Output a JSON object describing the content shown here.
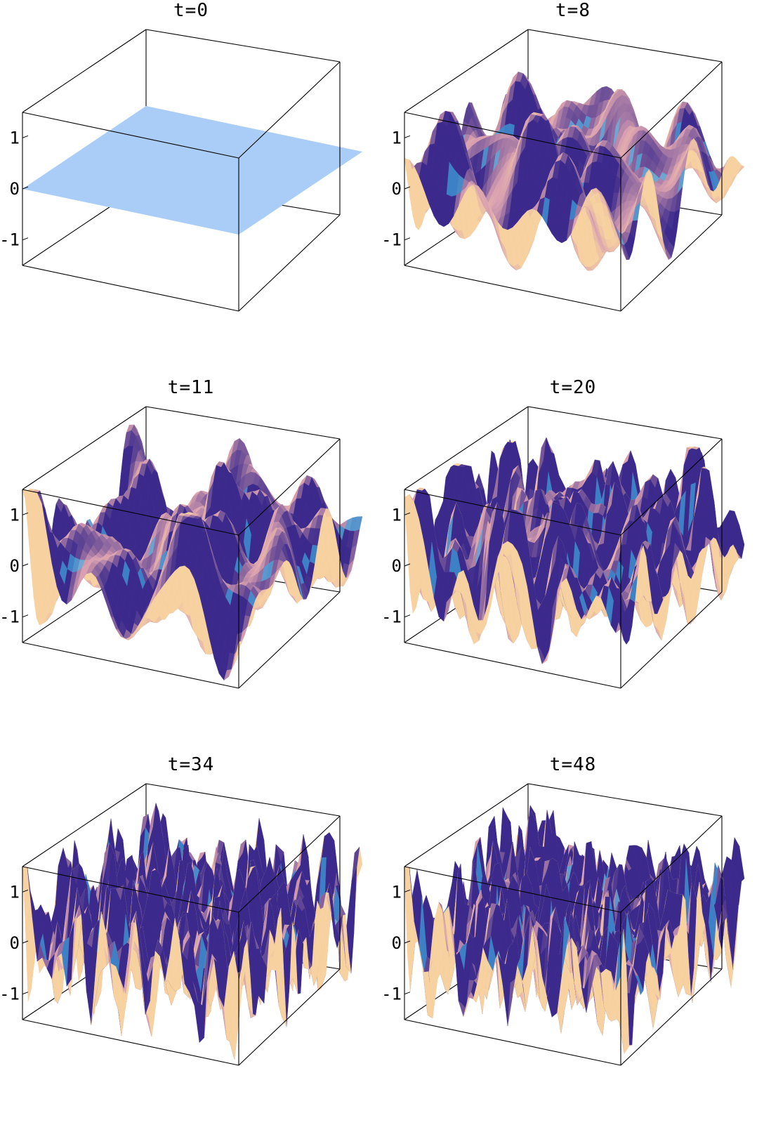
{
  "colors": {
    "flat_plane": "#a9cdf6",
    "surface_low": "#3b2a8c",
    "surface_mid": "#d9a0b0",
    "surface_high": "#f7d2a0",
    "highlight_cyan": "#3fd6ff",
    "box_edge": "#000000"
  },
  "chart_data": [
    {
      "type": "surface3d",
      "title": "t=0",
      "zticks": [
        "1",
        "0",
        "-1"
      ],
      "zlim": [
        -1.5,
        1.5
      ],
      "amplitude": 0.0,
      "roughness": 0,
      "flat": true
    },
    {
      "type": "surface3d",
      "title": "t=8",
      "zticks": [
        "1",
        "0",
        "-1"
      ],
      "zlim": [
        -1.5,
        1.5
      ],
      "amplitude": 1.0,
      "roughness": 2
    },
    {
      "type": "surface3d",
      "title": "t=11",
      "zticks": [
        "1",
        "0",
        "-1"
      ],
      "zlim": [
        -1.5,
        1.5
      ],
      "amplitude": 1.3,
      "roughness": 2
    },
    {
      "type": "surface3d",
      "title": "t=20",
      "zticks": [
        "1",
        "0",
        "-1"
      ],
      "zlim": [
        -1.5,
        1.5
      ],
      "amplitude": 1.3,
      "roughness": 4
    },
    {
      "type": "surface3d",
      "title": "t=34",
      "zticks": [
        "1",
        "0",
        "-1"
      ],
      "zlim": [
        -1.5,
        1.5
      ],
      "amplitude": 1.2,
      "roughness": 7
    },
    {
      "type": "surface3d",
      "title": "t=48",
      "zticks": [
        "1",
        "0",
        "-1"
      ],
      "zlim": [
        -1.5,
        1.5
      ],
      "amplitude": 1.2,
      "roughness": 9
    }
  ]
}
